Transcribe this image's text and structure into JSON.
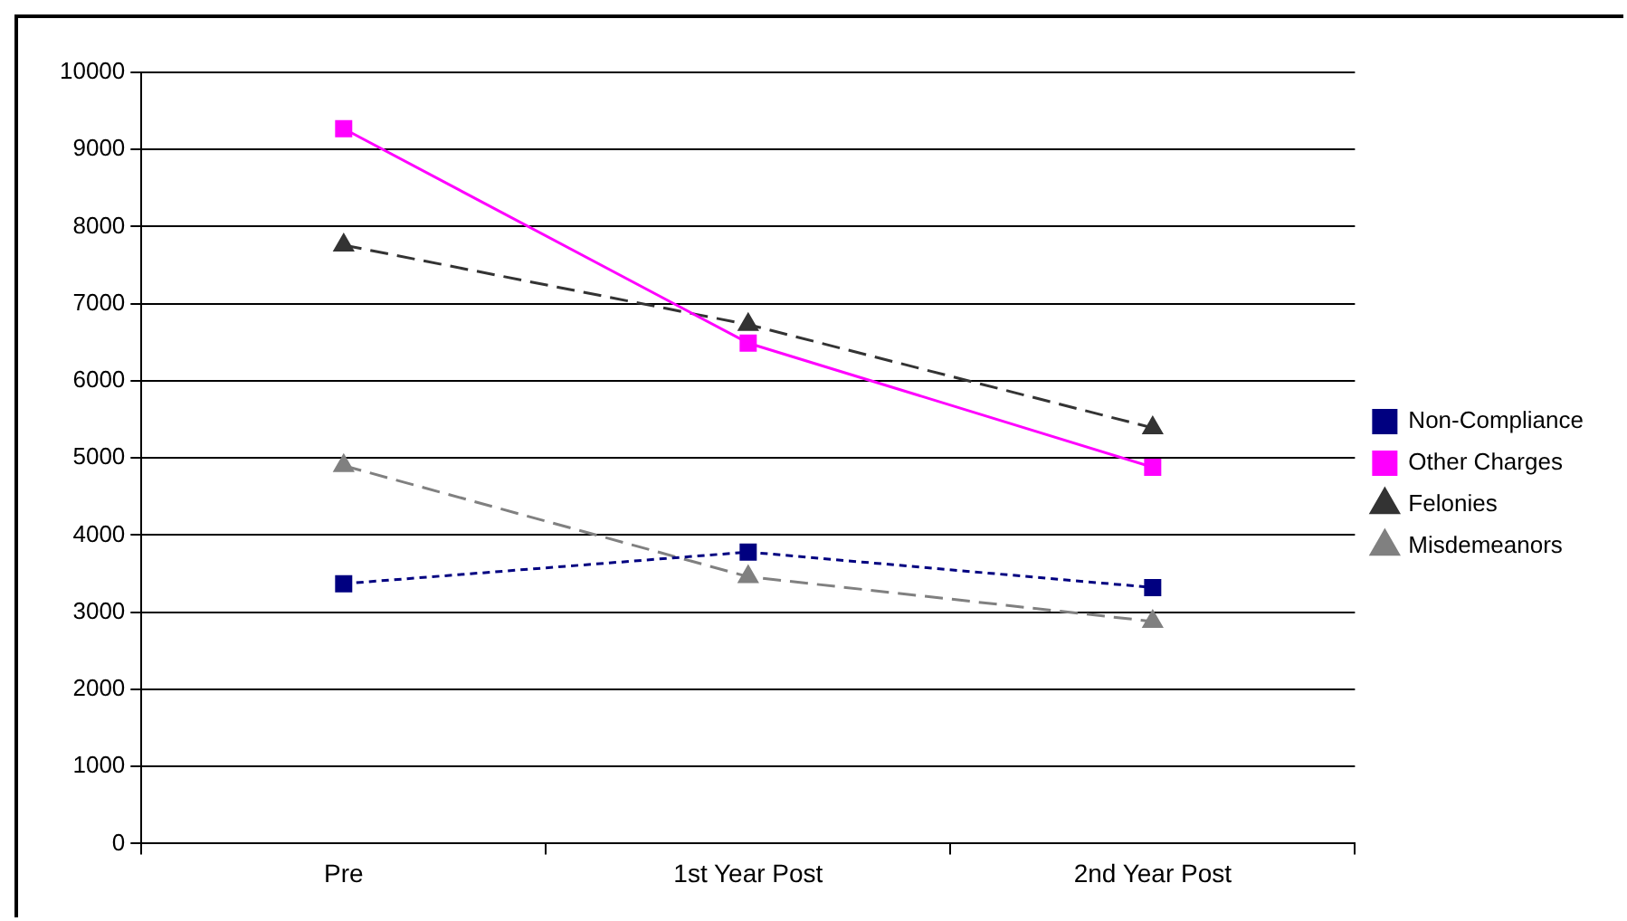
{
  "chart_data": {
    "type": "line",
    "categories": [
      "Pre",
      "1st Year Post",
      "2nd Year Post"
    ],
    "series": [
      {
        "name": "Non-Compliance",
        "color": "#000080",
        "values": [
          3370,
          3780,
          3320
        ],
        "marker": "square",
        "line_style": "dotted"
      },
      {
        "name": "Other Charges",
        "color": "#ff00ff",
        "values": [
          9270,
          6490,
          4880
        ],
        "marker": "square",
        "line_style": "solid"
      },
      {
        "name": "Felonies",
        "color": "#333333",
        "values": [
          7760,
          6730,
          5390
        ],
        "marker": "triangle",
        "line_style": "dashed"
      },
      {
        "name": "Misdemeanors",
        "color": "#808080",
        "values": [
          4900,
          3460,
          2880
        ],
        "marker": "triangle",
        "line_style": "dashed"
      }
    ],
    "ylim": [
      0,
      10000
    ],
    "yticks": [
      0,
      1000,
      2000,
      3000,
      4000,
      5000,
      6000,
      7000,
      8000,
      9000,
      10000
    ],
    "grid": "y",
    "legend": "right"
  }
}
